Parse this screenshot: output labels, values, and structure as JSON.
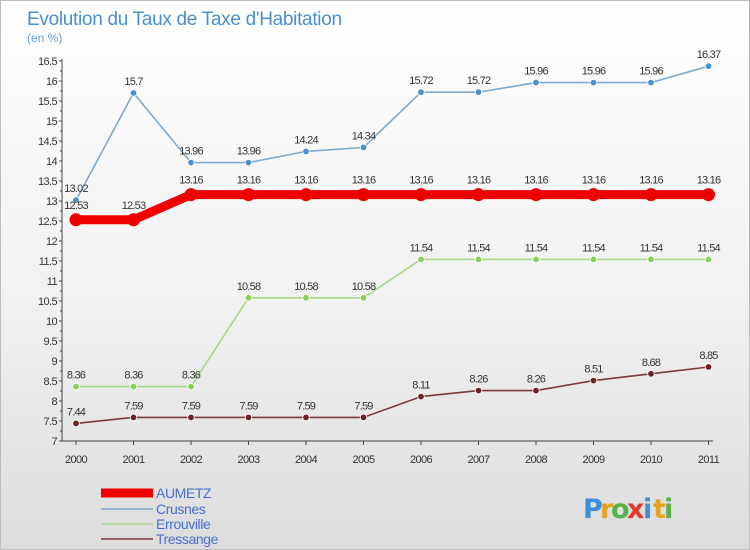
{
  "chart_data": {
    "type": "line",
    "title": "Evolution du Taux de Taxe d'Habitation",
    "subtitle": "(en %)",
    "x": [
      "2000",
      "2001",
      "2002",
      "2003",
      "2004",
      "2005",
      "2006",
      "2007",
      "2008",
      "2009",
      "2010",
      "2011"
    ],
    "ylim": [
      7,
      16.5
    ],
    "yticks": [
      "7",
      "7.5",
      "8",
      "8.5",
      "9",
      "9.5",
      "10",
      "10.5",
      "11",
      "11.5",
      "12",
      "12.5",
      "13",
      "13.5",
      "14",
      "14.5",
      "15",
      "15.5",
      "16",
      "16.5"
    ],
    "legend_position": "bottom-left",
    "series": [
      {
        "name": "Crusnes",
        "color": "#7fa9cf",
        "marker": "#4a8fcf",
        "values": [
          13.02,
          15.7,
          13.96,
          13.96,
          14.24,
          14.34,
          15.72,
          15.72,
          15.96,
          15.96,
          15.96,
          16.37
        ],
        "labels": [
          "13.02",
          "15.7",
          "13.96",
          "13.96",
          "14.24",
          "14.34",
          "15.72",
          "15.72",
          "15.96",
          "15.96",
          "15.96",
          "16.37"
        ]
      },
      {
        "name": "Errouville",
        "color": "#a9d98a",
        "marker": "#8ccf52",
        "values": [
          8.36,
          8.36,
          8.36,
          10.58,
          10.58,
          10.58,
          11.54,
          11.54,
          11.54,
          11.54,
          11.54,
          11.54
        ],
        "labels": [
          "8.36",
          "8.36",
          "8.36",
          "10.58",
          "10.58",
          "10.58",
          "11.54",
          "11.54",
          "11.54",
          "11.54",
          "11.54",
          "11.54"
        ]
      },
      {
        "name": "Tressange",
        "color": "#7a3a3a",
        "marker": "#6b2323",
        "values": [
          7.44,
          7.59,
          7.59,
          7.59,
          7.59,
          7.59,
          8.11,
          8.26,
          8.26,
          8.51,
          8.68,
          8.85
        ],
        "labels": [
          "7.44",
          "7.59",
          "7.59",
          "7.59",
          "7.59",
          "7.59",
          "8.11",
          "8.26",
          "8.26",
          "8.51",
          "8.68",
          "8.85"
        ]
      },
      {
        "name": "AUMETZ",
        "color": "#ee0000",
        "marker": "#ee0000",
        "values": [
          12.53,
          12.53,
          13.16,
          13.16,
          13.16,
          13.16,
          13.16,
          13.16,
          13.16,
          13.16,
          13.16,
          13.16
        ],
        "labels": [
          "12.53",
          "12.53",
          "13.16",
          "13.16",
          "13.16",
          "13.16",
          "13.16",
          "13.16",
          "13.16",
          "13.16",
          "13.16",
          "13.16"
        ]
      }
    ],
    "legend": [
      {
        "name": "AUMETZ",
        "color": "#ee0000"
      },
      {
        "name": "Crusnes",
        "color": "#7fa9cf"
      },
      {
        "name": "Errouville",
        "color": "#a9d98a"
      },
      {
        "name": "Tressange",
        "color": "#7a3a3a"
      }
    ]
  },
  "logo": {
    "letters": [
      "P",
      "r",
      "o",
      "x",
      "i",
      "t",
      "i"
    ],
    "colors": [
      "#3a8fd8",
      "#e8a21c",
      "#58b146",
      "#e23a2a",
      "#3a8fd8",
      "#e8a21c",
      "#58b146"
    ]
  }
}
